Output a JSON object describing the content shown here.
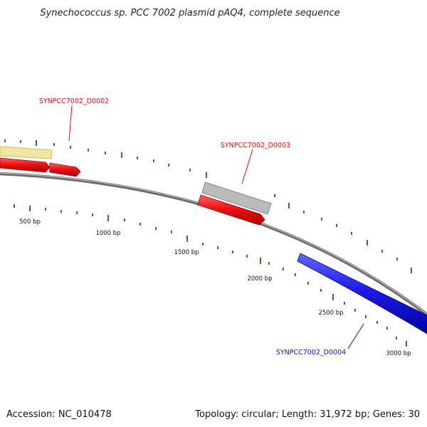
{
  "title": "Synechococcus sp. PCC 7002 plasmid pAQ4, complete sequence",
  "footer": {
    "accession": "Accession: NC_010478",
    "summary": "Topology: circular; Length: 31,972 bp; Genes: 30"
  },
  "colors": {
    "backbone": "#8a8a8a",
    "tick": "#2f7d1f",
    "gene_red": "#ee1111",
    "gene_grey": "#bbbbbb",
    "gene_yellow": "#f0e8a0",
    "gene_blue": "#1c1ce6",
    "label_red": "#dd1111",
    "label_blue": "#1111bb"
  },
  "bp_ticks": [
    "500 bp",
    "1000 bp",
    "1500 bp",
    "2000 bp",
    "2500 bp",
    "3000 bp"
  ],
  "gene_labels": [
    {
      "id": "d0002",
      "text": "SYNPCC7002_D0002",
      "color": "label_red"
    },
    {
      "id": "d0003",
      "text": "SYNPCC7002_D0003",
      "color": "label_red"
    },
    {
      "id": "d0004",
      "text": "SYNPCC7002_D0004",
      "color": "label_blue"
    }
  ]
}
